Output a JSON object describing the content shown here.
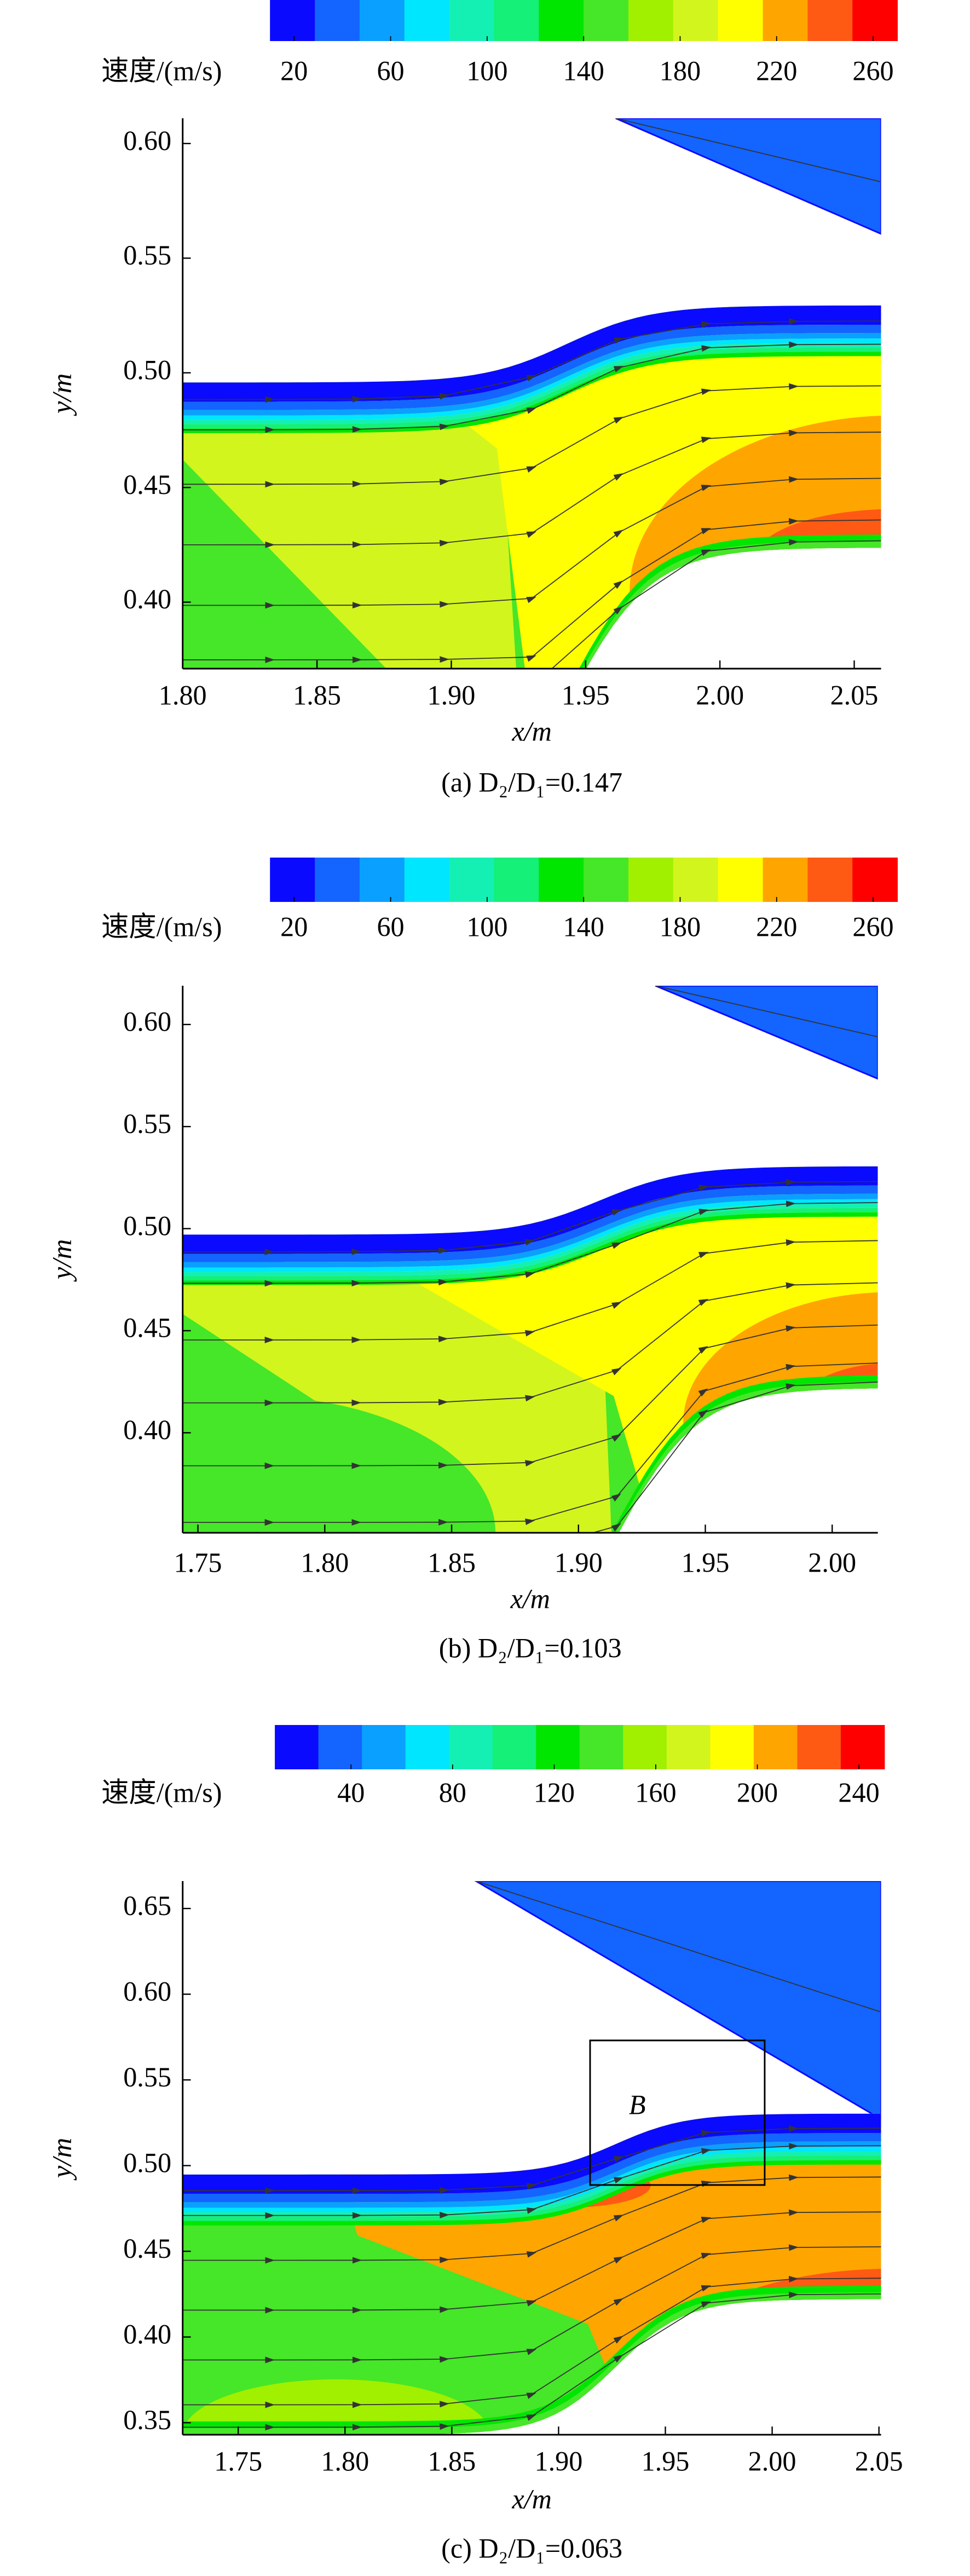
{
  "chart_data": [
    {
      "type": "contour",
      "colorbar_label": "速度/(m/s)",
      "clim": [
        10,
        270
      ],
      "colorbar_ticks": [
        20,
        60,
        100,
        140,
        180,
        220,
        260
      ],
      "colors": [
        "#0a0aff",
        "#1464ff",
        "#0aa0ff",
        "#00e6ff",
        "#14f0b4",
        "#14f078",
        "#00e600",
        "#46e628",
        "#a0f000",
        "#d2f51e",
        "#ffff00",
        "#ffa500",
        "#ff5a14",
        "#ff0000"
      ],
      "xlabel": "x/m",
      "ylabel": "y/m",
      "xlim": [
        1.8,
        2.06
      ],
      "xticks": [
        {
          "value": 1.8,
          "label": "1.80"
        },
        1.85,
        {
          "value": 1.9,
          "label": "1.90"
        },
        1.95,
        {
          "value": 2.0,
          "label": "2.00"
        },
        2.05
      ],
      "ylim": [
        0.371,
        0.611
      ],
      "yticks": [
        {
          "value": 0.4,
          "label": "0.40"
        },
        0.45,
        {
          "value": 0.5,
          "label": "0.50"
        },
        0.55,
        {
          "value": 0.6,
          "label": "0.60"
        }
      ],
      "caption": "(a) D₂/D₁=0.147"
    },
    {
      "type": "contour",
      "colorbar_label": "速度/(m/s)",
      "clim": [
        10,
        270
      ],
      "colorbar_ticks": [
        20,
        60,
        100,
        140,
        180,
        220,
        260
      ],
      "colors": [
        "#0a0aff",
        "#1464ff",
        "#0aa0ff",
        "#00e6ff",
        "#14f0b4",
        "#14f078",
        "#00e600",
        "#46e628",
        "#a0f000",
        "#d2f51e",
        "#ffff00",
        "#ffa500",
        "#ff5a14",
        "#ff0000"
      ],
      "xlabel": "x/m",
      "ylabel": "y/m",
      "xlim": [
        1.744,
        2.018
      ],
      "xticks": [
        1.75,
        {
          "value": 1.8,
          "label": "1.80"
        },
        1.85,
        {
          "value": 1.9,
          "label": "1.90"
        },
        1.95,
        {
          "value": 2.0,
          "label": "2.00"
        }
      ],
      "ylim": [
        0.351,
        0.619
      ],
      "yticks": [
        {
          "value": 0.4,
          "label": "0.40"
        },
        0.45,
        {
          "value": 0.5,
          "label": "0.50"
        },
        0.55,
        {
          "value": 0.6,
          "label": "0.60"
        }
      ],
      "caption": "(b) D₂/D₁=0.103"
    },
    {
      "type": "contour",
      "colorbar_label": "速度/(m/s)",
      "clim": [
        10,
        250
      ],
      "colorbar_ticks": [
        40,
        80,
        120,
        160,
        200,
        240
      ],
      "colors": [
        "#0a0aff",
        "#1464ff",
        "#0aa0ff",
        "#00e6ff",
        "#14f0b4",
        "#14f078",
        "#00e600",
        "#46e628",
        "#a0f000",
        "#d2f51e",
        "#ffff00",
        "#ffa500",
        "#ff5a14",
        "#ff0000"
      ],
      "xlabel": "x/m",
      "ylabel": "y/m",
      "xlim": [
        1.724,
        2.051
      ],
      "xticks": [
        1.75,
        {
          "value": 1.8,
          "label": "1.80"
        },
        1.85,
        {
          "value": 1.9,
          "label": "1.90"
        },
        1.95,
        {
          "value": 2.0,
          "label": "2.00"
        },
        2.05
      ],
      "ylim": [
        0.343,
        0.666
      ],
      "yticks": [
        0.35,
        {
          "value": 0.4,
          "label": "0.40"
        },
        0.45,
        {
          "value": 0.5,
          "label": "0.50"
        },
        0.55,
        {
          "value": 0.6,
          "label": "0.60"
        },
        0.65
      ],
      "annotation": "B",
      "caption": "(c) D₂/D₁=0.063"
    }
  ]
}
